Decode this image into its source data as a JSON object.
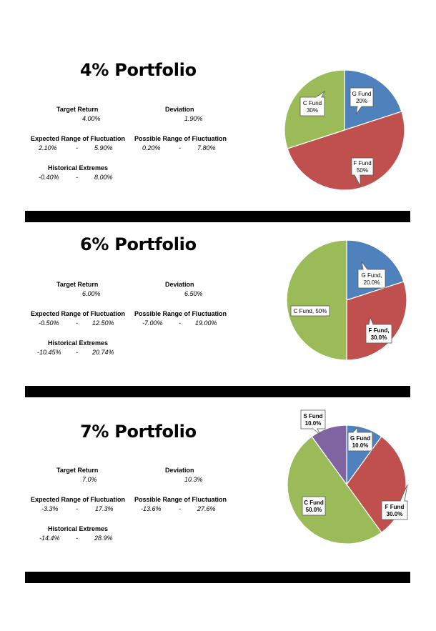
{
  "colors": {
    "g": "#4f81bd",
    "f": "#c0504d",
    "c": "#9bbb59",
    "s": "#8064a2",
    "bar": "#000000"
  },
  "panels": [
    {
      "title": "4% Portfolio",
      "target_label": "Target Return",
      "target": "4.00%",
      "deviation_label": "Deviation",
      "deviation": "1.90%",
      "expected_label": "Expected Range of Fluctuation",
      "expected_low": "2.10%",
      "expected_high": "5.90%",
      "possible_label": "Possible Range of Fluctuation",
      "possible_low": "0.20%",
      "possible_high": "7.80%",
      "extremes_label": "Historical Extremes",
      "extremes_low": "-0.40%",
      "extremes_high": "8.00%",
      "dash": "-"
    },
    {
      "title": "6% Portfolio",
      "target_label": "Target Return",
      "target": "6.00%",
      "deviation_label": "Deviation",
      "deviation": "6.50%",
      "expected_label": "Expected Range of Fluctuation",
      "expected_low": "-0.50%",
      "expected_high": "12.50%",
      "possible_label": "Possible Range of Fluctuation",
      "possible_low": "-7.00%",
      "possible_high": "19.00%",
      "extremes_label": "Historical Extremes",
      "extremes_low": "-10.45%",
      "extremes_high": "20.74%",
      "dash": "-"
    },
    {
      "title": "7% Portfolio",
      "target_label": "Target Return",
      "target": "7.0%",
      "deviation_label": "Deviation",
      "deviation": "10.3%",
      "expected_label": "Expected Range of Fluctuation",
      "expected_low": "-3.3%",
      "expected_high": "17.3%",
      "possible_label": "Possible Range of Fluctuation",
      "possible_low": "-13.6%",
      "possible_high": "27.6%",
      "extremes_label": "Historical Extremes",
      "extremes_low": "-14.4%",
      "extremes_high": "28.9%",
      "dash": "-"
    }
  ],
  "chart_data": [
    {
      "type": "pie",
      "slices": [
        {
          "label": "G Fund",
          "value": 20,
          "value_text": "20%",
          "color": "#4f81bd"
        },
        {
          "label": "F Fund",
          "value": 50,
          "value_text": "50%",
          "color": "#c0504d"
        },
        {
          "label": "C Fund",
          "value": 30,
          "value_text": "30%",
          "color": "#9bbb59"
        }
      ]
    },
    {
      "type": "pie",
      "slices": [
        {
          "label": "G Fund,",
          "value": 20,
          "value_text": "20.0%",
          "color": "#4f81bd"
        },
        {
          "label": "F Fund,",
          "value": 30,
          "value_text": "30.0%",
          "color": "#c0504d"
        },
        {
          "label": "C Fund,",
          "value": 50,
          "value_text": "50%",
          "color": "#9bbb59"
        }
      ]
    },
    {
      "type": "pie",
      "slices": [
        {
          "label": "G Fund",
          "value": 10,
          "value_text": "10.0%",
          "color": "#4f81bd"
        },
        {
          "label": "F Fund",
          "value": 30,
          "value_text": "30.0%",
          "color": "#c0504d"
        },
        {
          "label": "C Fund",
          "value": 50,
          "value_text": "50.0%",
          "color": "#9bbb59"
        },
        {
          "label": "S Fund",
          "value": 10,
          "value_text": "10.0%",
          "color": "#8064a2"
        }
      ]
    }
  ]
}
